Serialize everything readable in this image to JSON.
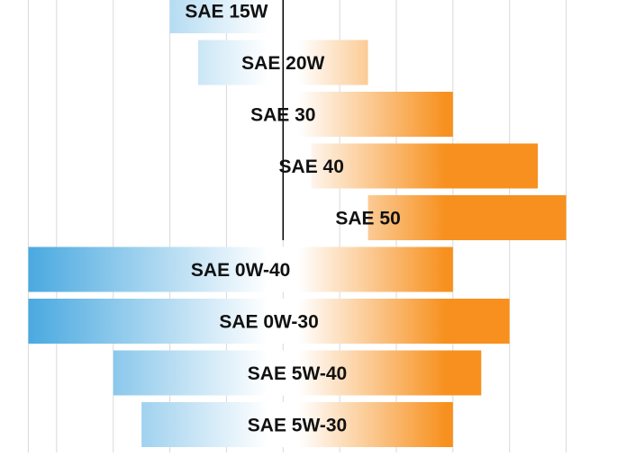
{
  "chart_data": {
    "type": "bar",
    "orientation": "horizontal",
    "grid": true,
    "legend": "none",
    "colors": {
      "cold": "#4aa9e0",
      "neutral": "#ffffff",
      "hot": "#f7901e",
      "grid": "#d9d9d9",
      "reference_line": "#000000",
      "label": "#111111"
    },
    "categories": [
      "SAE 15W",
      "SAE 20W",
      "SAE 30",
      "SAE 40",
      "SAE 50",
      "SAE 0W-40",
      "SAE 0W-30",
      "SAE 5W-40",
      "SAE 5W-30"
    ],
    "ranges": [
      {
        "label": "SAE 15W",
        "start": -20,
        "end": 0
      },
      {
        "label": "SAE 20W",
        "start": -15,
        "end": 15
      },
      {
        "label": "SAE 30",
        "start": 0,
        "end": 30
      },
      {
        "label": "SAE 40",
        "start": 5,
        "end": 45
      },
      {
        "label": "SAE 50",
        "start": 15,
        "end": 50
      },
      {
        "label": "SAE 0W-40",
        "start": -45,
        "end": 30
      },
      {
        "label": "SAE 0W-30",
        "start": -45,
        "end": 40
      },
      {
        "label": "SAE 5W-40",
        "start": -30,
        "end": 35
      },
      {
        "label": "SAE 5W-30",
        "start": -25,
        "end": 30
      }
    ],
    "xlim": [
      -50,
      55
    ],
    "x_grid": [
      -45,
      -40,
      -30,
      -20,
      -10,
      0,
      10,
      20,
      30,
      40,
      50
    ],
    "reference_x": 0
  }
}
